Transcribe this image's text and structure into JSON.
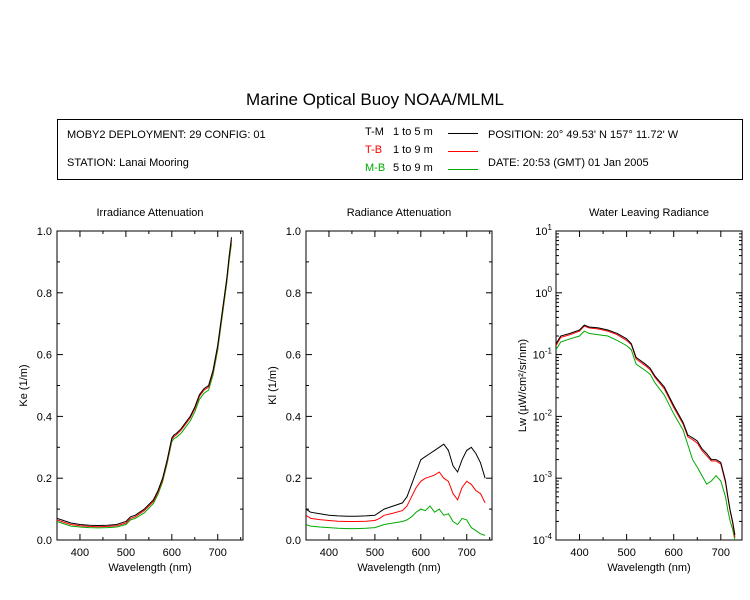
{
  "title": "Marine Optical Buoy NOAA/MLML",
  "info": {
    "deployment": "MOBY2 DEPLOYMENT: 29 CONFIG: 01",
    "station": "STATION: Lanai Mooring",
    "position": "POSITION: 20° 49.53' N   157° 11.72' W",
    "date": "DATE: 20:53 (GMT) 01 Jan 2005"
  },
  "legend": [
    {
      "code": "T-M",
      "range": "1 to 5  m",
      "color": "#000000"
    },
    {
      "code": "T-B",
      "range": "1 to 9  m",
      "color": "#ff0000"
    },
    {
      "code": "M-B",
      "range": "5 to 9  m",
      "color": "#00aa00"
    }
  ],
  "chart_data": [
    {
      "type": "line",
      "title": "Irradiance Attenuation",
      "xlabel": "Wavelength (nm)",
      "ylabel": "Ke  (1/m)",
      "xlim": [
        350,
        755
      ],
      "ylim": [
        0,
        1.0
      ],
      "xticks": [
        400,
        500,
        600,
        700
      ],
      "yticks": [
        "0.0",
        "0.2",
        "0.4",
        "0.6",
        "0.8",
        "1.0"
      ],
      "x": [
        350,
        360,
        380,
        400,
        420,
        440,
        460,
        480,
        500,
        510,
        520,
        540,
        560,
        570,
        580,
        590,
        600,
        605,
        610,
        620,
        630,
        640,
        650,
        660,
        670,
        680,
        690,
        700,
        710,
        720,
        725,
        730
      ],
      "series": [
        {
          "name": "T-M",
          "color": "#000000",
          "values": [
            0.07,
            0.065,
            0.055,
            0.05,
            0.048,
            0.047,
            0.048,
            0.05,
            0.06,
            0.075,
            0.08,
            0.1,
            0.13,
            0.16,
            0.2,
            0.26,
            0.33,
            0.34,
            0.345,
            0.36,
            0.38,
            0.4,
            0.43,
            0.47,
            0.49,
            0.5,
            0.55,
            0.63,
            0.74,
            0.85,
            0.92,
            0.98
          ]
        },
        {
          "name": "T-B",
          "color": "#ff0000",
          "values": [
            0.065,
            0.06,
            0.05,
            0.046,
            0.044,
            0.043,
            0.044,
            0.046,
            0.055,
            0.07,
            0.075,
            0.095,
            0.125,
            0.155,
            0.195,
            0.255,
            0.325,
            0.335,
            0.34,
            0.355,
            0.375,
            0.395,
            0.425,
            0.465,
            0.485,
            0.495,
            0.545,
            0.625,
            0.735,
            0.845,
            0.915,
            0.97
          ]
        },
        {
          "name": "M-B",
          "color": "#00aa00",
          "values": [
            0.06,
            0.055,
            0.045,
            0.042,
            0.04,
            0.039,
            0.04,
            0.042,
            0.05,
            0.065,
            0.07,
            0.088,
            0.118,
            0.148,
            0.188,
            0.248,
            0.318,
            0.328,
            0.332,
            0.345,
            0.365,
            0.385,
            0.415,
            0.455,
            0.475,
            0.485,
            0.535,
            0.615,
            0.725,
            0.835,
            0.905,
            0.96
          ]
        }
      ]
    },
    {
      "type": "line",
      "title": "Radiance Attenuation",
      "xlabel": "Wavelength (nm)",
      "ylabel": "Kl  (1/m)",
      "xlim": [
        350,
        755
      ],
      "ylim": [
        0,
        1.0
      ],
      "xticks": [
        400,
        500,
        600,
        700
      ],
      "yticks": [
        "0.0",
        "0.2",
        "0.4",
        "0.6",
        "0.8",
        "1.0"
      ],
      "x": [
        350,
        360,
        380,
        400,
        420,
        440,
        460,
        480,
        500,
        510,
        520,
        540,
        560,
        570,
        580,
        590,
        600,
        610,
        620,
        630,
        640,
        650,
        660,
        670,
        680,
        690,
        700,
        710,
        720,
        730,
        740
      ],
      "series": [
        {
          "name": "T-M",
          "color": "#000000",
          "values": [
            0.1,
            0.09,
            0.085,
            0.08,
            0.078,
            0.077,
            0.077,
            0.078,
            0.08,
            0.09,
            0.1,
            0.11,
            0.12,
            0.14,
            0.18,
            0.22,
            0.26,
            0.27,
            0.28,
            0.29,
            0.3,
            0.31,
            0.29,
            0.24,
            0.22,
            0.26,
            0.29,
            0.3,
            0.28,
            0.25,
            0.2
          ]
        },
        {
          "name": "T-B",
          "color": "#ff0000",
          "values": [
            0.08,
            0.07,
            0.066,
            0.063,
            0.061,
            0.06,
            0.06,
            0.061,
            0.063,
            0.07,
            0.08,
            0.087,
            0.095,
            0.11,
            0.14,
            0.17,
            0.19,
            0.2,
            0.205,
            0.21,
            0.22,
            0.2,
            0.19,
            0.15,
            0.13,
            0.17,
            0.19,
            0.18,
            0.16,
            0.15,
            0.12
          ]
        },
        {
          "name": "M-B",
          "color": "#00aa00",
          "values": [
            0.05,
            0.045,
            0.042,
            0.04,
            0.038,
            0.037,
            0.037,
            0.038,
            0.04,
            0.045,
            0.05,
            0.055,
            0.06,
            0.065,
            0.075,
            0.09,
            0.1,
            0.095,
            0.11,
            0.09,
            0.1,
            0.08,
            0.085,
            0.06,
            0.05,
            0.07,
            0.065,
            0.04,
            0.03,
            0.02,
            0.015
          ]
        }
      ]
    },
    {
      "type": "line",
      "title": "Water Leaving Radiance",
      "xlabel": "Wavelength (nm)",
      "ylabel": "Lw  (µW/cm²/sr/nm)",
      "xlim": [
        350,
        745
      ],
      "ylim": [
        0.0001,
        10
      ],
      "yscale": "log",
      "xticks": [
        400,
        500,
        600,
        700
      ],
      "yticks": [
        {
          "base": "10",
          "exp": "1"
        },
        {
          "base": "10",
          "exp": "0"
        },
        {
          "base": "10",
          "exp": "-1"
        },
        {
          "base": "10",
          "exp": "-2"
        },
        {
          "base": "10",
          "exp": "-3"
        },
        {
          "base": "10",
          "exp": "-4"
        }
      ],
      "x": [
        350,
        360,
        380,
        400,
        410,
        420,
        440,
        460,
        480,
        500,
        510,
        520,
        540,
        550,
        560,
        580,
        600,
        620,
        630,
        640,
        650,
        660,
        670,
        680,
        690,
        700,
        710,
        715,
        720,
        725,
        730
      ],
      "series": [
        {
          "name": "T-M",
          "color": "#000000",
          "values": [
            0.15,
            0.2,
            0.22,
            0.25,
            0.3,
            0.28,
            0.27,
            0.25,
            0.22,
            0.18,
            0.15,
            0.09,
            0.07,
            0.06,
            0.045,
            0.03,
            0.015,
            0.008,
            0.005,
            0.0045,
            0.004,
            0.003,
            0.0025,
            0.002,
            0.002,
            0.0018,
            0.0009,
            0.0005,
            0.0003,
            0.0002,
            0.00012
          ]
        },
        {
          "name": "T-B",
          "color": "#ff0000",
          "values": [
            0.14,
            0.19,
            0.21,
            0.24,
            0.29,
            0.27,
            0.26,
            0.24,
            0.21,
            0.17,
            0.145,
            0.085,
            0.066,
            0.057,
            0.043,
            0.028,
            0.014,
            0.0075,
            0.0047,
            0.0042,
            0.0037,
            0.0028,
            0.0023,
            0.0019,
            0.0019,
            0.0017,
            0.00085,
            0.00048,
            0.00029,
            0.00019,
            0.00011
          ]
        },
        {
          "name": "M-B",
          "color": "#00aa00",
          "values": [
            0.12,
            0.16,
            0.18,
            0.2,
            0.24,
            0.22,
            0.21,
            0.2,
            0.17,
            0.14,
            0.12,
            0.07,
            0.055,
            0.048,
            0.035,
            0.022,
            0.011,
            0.006,
            0.0035,
            0.002,
            0.0015,
            0.0011,
            0.0008,
            0.0009,
            0.0011,
            0.0009,
            0.0005,
            0.0003,
            0.0002,
            0.00015,
            0.0001
          ]
        }
      ]
    }
  ]
}
